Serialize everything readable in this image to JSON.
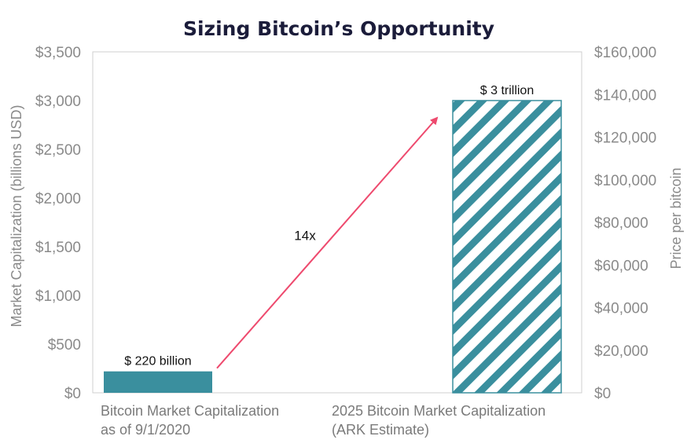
{
  "chart_data": {
    "type": "bar",
    "title": "Sizing Bitcoin’s Opportunity",
    "categories": [
      [
        "Bitcoin Market Capitalization",
        "as of 9/1/2020"
      ],
      [
        "2025 Bitcoin Market Capitalization",
        "(ARK Estimate)"
      ]
    ],
    "values": [
      220,
      3000
    ],
    "value_labels": [
      "$ 220 billion",
      "$ 3 trillion"
    ],
    "bar_styles": [
      "solid",
      "hatched"
    ],
    "ylabel": "Market Capitalization (billions USD)",
    "ylim": [
      0,
      3500
    ],
    "yticks": [
      0,
      500,
      1000,
      1500,
      2000,
      2500,
      3000,
      3500
    ],
    "ytick_labels": [
      "$0",
      "$500",
      "$1,000",
      "$1,500",
      "$2,000",
      "$2,500",
      "$3,000",
      "$3,500"
    ],
    "y2label": "Price per bitcoin",
    "y2lim": [
      0,
      160000
    ],
    "y2ticks": [
      0,
      20000,
      40000,
      60000,
      80000,
      100000,
      120000,
      140000,
      160000
    ],
    "y2tick_labels": [
      "$0",
      "$20,000",
      "$40,000",
      "$60,000",
      "$80,000",
      "$100,000",
      "$120,000",
      "$140,000",
      "$160,000"
    ],
    "annotation": {
      "text": "14x",
      "from_category": 0,
      "to_category": 1
    },
    "grid": false,
    "colors": {
      "bar": "#3a8f9e",
      "arrow": "#ee4a6e",
      "title": "#1b1c3a",
      "axis_text": "#8a8a8a"
    }
  }
}
